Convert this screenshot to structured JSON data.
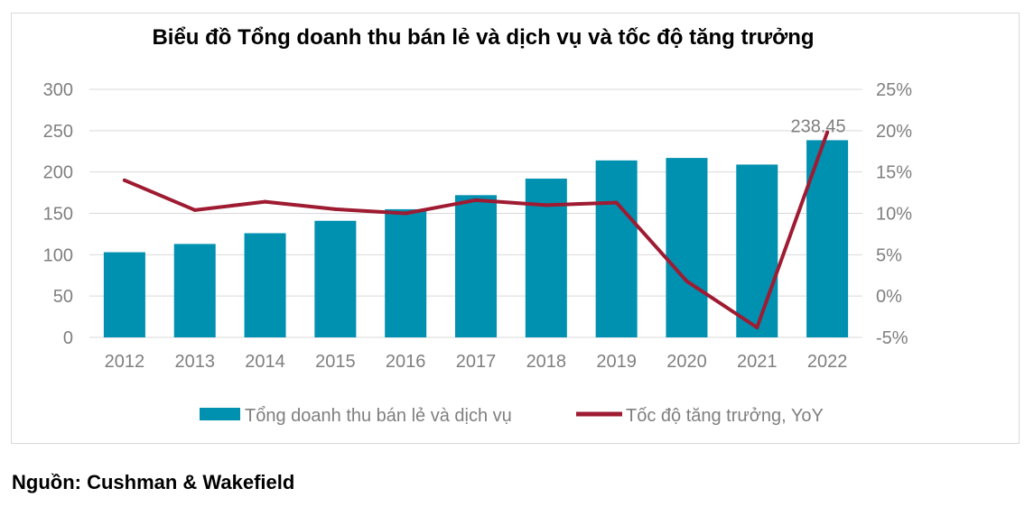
{
  "chart_data": {
    "type": "bar",
    "title": "Biểu đồ Tổng doanh thu bán lẻ và dịch vụ và tốc độ tăng trưởng",
    "categories": [
      "2012",
      "2013",
      "2014",
      "2015",
      "2016",
      "2017",
      "2018",
      "2019",
      "2020",
      "2021",
      "2022"
    ],
    "series": [
      {
        "name": "Tổng doanh thu bán lẻ và dịch vụ",
        "type": "bar",
        "axis": "left",
        "color": "#0090B0",
        "values": [
          103,
          113,
          126,
          141,
          155,
          172,
          192,
          214,
          217,
          209,
          238.45
        ]
      },
      {
        "name": "Tốc độ tăng trưởng, YoY",
        "type": "line",
        "axis": "right",
        "color": "#9E1B32",
        "values": [
          14.0,
          10.4,
          11.4,
          10.5,
          10.0,
          11.6,
          11.0,
          11.3,
          1.8,
          -3.8,
          19.8
        ]
      }
    ],
    "data_labels": [
      {
        "category": "2022",
        "text": "238.45"
      }
    ],
    "y_left": {
      "min": 0,
      "max": 300,
      "ticks": [
        "0",
        "50",
        "100",
        "150",
        "200",
        "250",
        "300"
      ]
    },
    "y_right": {
      "min": -5,
      "max": 25,
      "ticks": [
        "-5%",
        "0%",
        "5%",
        "10%",
        "15%",
        "20%",
        "25%"
      ]
    },
    "grid": true,
    "legend_position": "bottom"
  },
  "source": "Nguồn: Cushman & Wakefield"
}
